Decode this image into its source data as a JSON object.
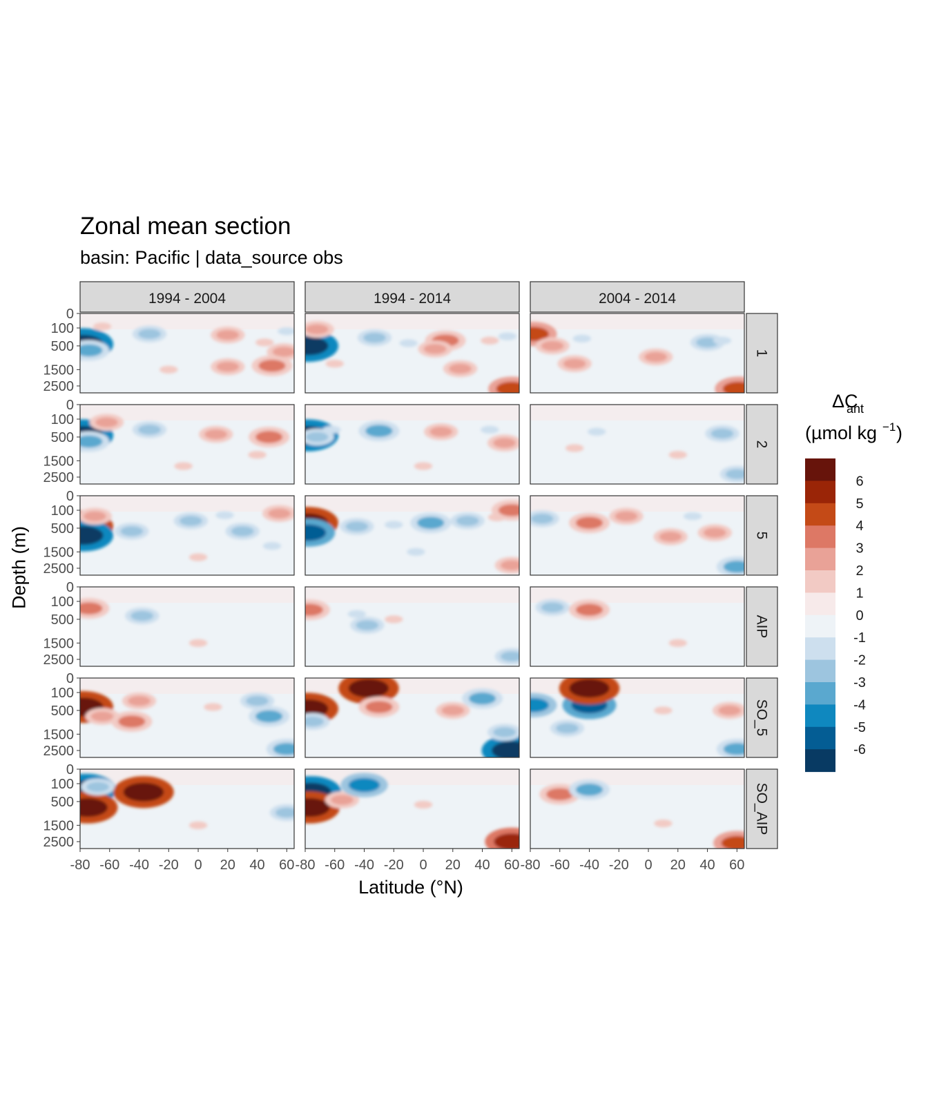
{
  "chart_data": {
    "type": "heatmap",
    "title": "Zonal mean section",
    "subtitle": "basin: Pacific | data_source obs",
    "xlabel": "Latitude (°N)",
    "ylabel": "Depth (m)",
    "xlim": [
      -80,
      65
    ],
    "x_ticks": [
      -80,
      -60,
      -40,
      -20,
      0,
      20,
      40,
      60
    ],
    "x_tick_labels": [
      "-80",
      "-60",
      "-40",
      "-20",
      "0",
      "20",
      "40",
      "60"
    ],
    "y_ticks": [
      0,
      100,
      500,
      1500,
      2500
    ],
    "y_tick_labels": [
      "0",
      "100",
      "500",
      "1500",
      "2500"
    ],
    "y_scale": "sqrt",
    "ylim": [
      3000,
      0
    ],
    "facet_columns": [
      "1994 - 2004",
      "1994 - 2014",
      "2004 - 2014"
    ],
    "facet_rows": [
      "1",
      "2",
      "5",
      "AIP",
      "SO_5",
      "SO_AIP"
    ],
    "legend": {
      "title_main": "ΔC",
      "title_sub": "ant",
      "title_units": "(µmol kg",
      "title_sup": "−1",
      "title_close": ")",
      "placement": "right",
      "labels": [
        "6",
        "5",
        "4",
        "3",
        "2",
        "1",
        "0",
        "-1",
        "-2",
        "-3",
        "-4",
        "-5",
        "-6"
      ],
      "colors": [
        "#67140b",
        "#9a2507",
        "#c44a17",
        "#dd7865",
        "#e9a297",
        "#f2cac4",
        "#f7eaea",
        "#eef3f7",
        "#cddfee",
        "#9dc5df",
        "#5aa8cf",
        "#0f88bf",
        "#045d94",
        "#083a63"
      ]
    },
    "panels": [
      {
        "row": "1",
        "col": "1994 - 2004",
        "features": [
          {
            "x": -78,
            "y": 450,
            "v": -6
          },
          {
            "x": -74,
            "y": 650,
            "v": -3
          },
          {
            "x": -65,
            "y": 80,
            "v": 1
          },
          {
            "x": -33,
            "y": 200,
            "v": -2
          },
          {
            "x": 20,
            "y": 220,
            "v": 2
          },
          {
            "x": 45,
            "y": 400,
            "v": 1
          },
          {
            "x": 58,
            "y": 700,
            "v": 2
          },
          {
            "x": 20,
            "y": 1350,
            "v": 2
          },
          {
            "x": 50,
            "y": 1300,
            "v": 3
          },
          {
            "x": -20,
            "y": 1500,
            "v": 1
          },
          {
            "x": 60,
            "y": 150,
            "v": -1
          }
        ]
      },
      {
        "row": "1",
        "col": "1994 - 2014",
        "features": [
          {
            "x": -78,
            "y": 500,
            "v": -6
          },
          {
            "x": -72,
            "y": 120,
            "v": 2
          },
          {
            "x": -60,
            "y": 1200,
            "v": 1
          },
          {
            "x": -33,
            "y": 280,
            "v": -2
          },
          {
            "x": -10,
            "y": 420,
            "v": -1
          },
          {
            "x": 15,
            "y": 350,
            "v": 3
          },
          {
            "x": 8,
            "y": 600,
            "v": 2
          },
          {
            "x": 25,
            "y": 1450,
            "v": 2
          },
          {
            "x": 45,
            "y": 350,
            "v": 1
          },
          {
            "x": 57,
            "y": 250,
            "v": -1
          },
          {
            "x": 60,
            "y": 2700,
            "v": 4
          }
        ]
      },
      {
        "row": "1",
        "col": "2004 - 2014",
        "features": [
          {
            "x": -78,
            "y": 200,
            "v": 4
          },
          {
            "x": -65,
            "y": 500,
            "v": 2
          },
          {
            "x": -50,
            "y": 1200,
            "v": 2
          },
          {
            "x": -45,
            "y": 300,
            "v": -1
          },
          {
            "x": 5,
            "y": 900,
            "v": 2
          },
          {
            "x": 40,
            "y": 400,
            "v": -2
          },
          {
            "x": 50,
            "y": 350,
            "v": -1
          },
          {
            "x": 61,
            "y": 2700,
            "v": 4
          }
        ]
      },
      {
        "row": "2",
        "col": "1994 - 2004",
        "features": [
          {
            "x": -78,
            "y": 450,
            "v": -6
          },
          {
            "x": -74,
            "y": 650,
            "v": -3
          },
          {
            "x": -62,
            "y": 150,
            "v": 2
          },
          {
            "x": -33,
            "y": 300,
            "v": -2
          },
          {
            "x": 12,
            "y": 420,
            "v": 2
          },
          {
            "x": 48,
            "y": 500,
            "v": 3
          },
          {
            "x": 40,
            "y": 1200,
            "v": 1
          },
          {
            "x": -10,
            "y": 1800,
            "v": 1
          }
        ]
      },
      {
        "row": "2",
        "col": "1994 - 2014",
        "features": [
          {
            "x": -78,
            "y": 450,
            "v": -6
          },
          {
            "x": -72,
            "y": 500,
            "v": -2
          },
          {
            "x": -62,
            "y": 300,
            "v": -1
          },
          {
            "x": -30,
            "y": 330,
            "v": -3
          },
          {
            "x": 12,
            "y": 350,
            "v": 2
          },
          {
            "x": 45,
            "y": 300,
            "v": -1
          },
          {
            "x": 55,
            "y": 700,
            "v": 2
          },
          {
            "x": 0,
            "y": 1800,
            "v": 1
          }
        ]
      },
      {
        "row": "2",
        "col": "2004 - 2014",
        "features": [
          {
            "x": -50,
            "y": 900,
            "v": 1
          },
          {
            "x": 20,
            "y": 1200,
            "v": 1
          },
          {
            "x": 50,
            "y": 400,
            "v": -2
          },
          {
            "x": -35,
            "y": 350,
            "v": -1
          },
          {
            "x": 60,
            "y": 2300,
            "v": -2
          }
        ]
      },
      {
        "row": "5",
        "col": "1994 - 2004",
        "features": [
          {
            "x": -78,
            "y": 450,
            "v": 6
          },
          {
            "x": -78,
            "y": 750,
            "v": -6
          },
          {
            "x": -70,
            "y": 200,
            "v": 2
          },
          {
            "x": -45,
            "y": 600,
            "v": -2
          },
          {
            "x": -5,
            "y": 300,
            "v": -2
          },
          {
            "x": 18,
            "y": 180,
            "v": -1
          },
          {
            "x": 30,
            "y": 600,
            "v": -2
          },
          {
            "x": 55,
            "y": 150,
            "v": 2
          },
          {
            "x": 50,
            "y": 1200,
            "v": -1
          },
          {
            "x": 0,
            "y": 1800,
            "v": 1
          }
        ]
      },
      {
        "row": "5",
        "col": "1994 - 2014",
        "features": [
          {
            "x": -78,
            "y": 350,
            "v": 6
          },
          {
            "x": -78,
            "y": 650,
            "v": -5
          },
          {
            "x": -45,
            "y": 450,
            "v": -2
          },
          {
            "x": -20,
            "y": 400,
            "v": -1
          },
          {
            "x": 5,
            "y": 350,
            "v": -3
          },
          {
            "x": 30,
            "y": 300,
            "v": -2
          },
          {
            "x": 50,
            "y": 220,
            "v": 1
          },
          {
            "x": 60,
            "y": 100,
            "v": 3
          },
          {
            "x": -5,
            "y": 1500,
            "v": -1
          },
          {
            "x": 60,
            "y": 2300,
            "v": 2
          }
        ]
      },
      {
        "row": "5",
        "col": "2004 - 2014",
        "features": [
          {
            "x": -72,
            "y": 250,
            "v": -2
          },
          {
            "x": -40,
            "y": 350,
            "v": 3
          },
          {
            "x": -15,
            "y": 200,
            "v": 2
          },
          {
            "x": 30,
            "y": 200,
            "v": -1
          },
          {
            "x": 15,
            "y": 800,
            "v": 2
          },
          {
            "x": 45,
            "y": 650,
            "v": 2
          },
          {
            "x": 60,
            "y": 2400,
            "v": -3
          }
        ]
      },
      {
        "row": "AIP",
        "col": "1994 - 2004",
        "features": [
          {
            "x": -74,
            "y": 220,
            "v": 3
          },
          {
            "x": -38,
            "y": 400,
            "v": -2
          },
          {
            "x": 0,
            "y": 1500,
            "v": 1
          }
        ]
      },
      {
        "row": "AIP",
        "col": "1994 - 2014",
        "features": [
          {
            "x": -77,
            "y": 250,
            "v": 3
          },
          {
            "x": -45,
            "y": 350,
            "v": -1
          },
          {
            "x": -38,
            "y": 700,
            "v": -2
          },
          {
            "x": -20,
            "y": 500,
            "v": 1
          },
          {
            "x": 60,
            "y": 2300,
            "v": -2
          }
        ]
      },
      {
        "row": "AIP",
        "col": "2004 - 2014",
        "features": [
          {
            "x": -65,
            "y": 200,
            "v": -2
          },
          {
            "x": -40,
            "y": 250,
            "v": 3
          },
          {
            "x": 20,
            "y": 1500,
            "v": 1
          }
        ]
      },
      {
        "row": "SO_5",
        "col": "1994 - 2004",
        "features": [
          {
            "x": -78,
            "y": 400,
            "v": 6
          },
          {
            "x": -65,
            "y": 700,
            "v": 2
          },
          {
            "x": -45,
            "y": 900,
            "v": 3
          },
          {
            "x": -40,
            "y": 250,
            "v": 2
          },
          {
            "x": 40,
            "y": 250,
            "v": -2
          },
          {
            "x": 48,
            "y": 700,
            "v": -3
          },
          {
            "x": 60,
            "y": 2400,
            "v": -3
          },
          {
            "x": 10,
            "y": 400,
            "v": 1
          }
        ]
      },
      {
        "row": "SO_5",
        "col": "1994 - 2014",
        "features": [
          {
            "x": -78,
            "y": 450,
            "v": 6
          },
          {
            "x": -75,
            "y": 900,
            "v": -2
          },
          {
            "x": -37,
            "y": 50,
            "v": 6
          },
          {
            "x": -30,
            "y": 400,
            "v": 3
          },
          {
            "x": 20,
            "y": 500,
            "v": 2
          },
          {
            "x": 40,
            "y": 200,
            "v": -3
          },
          {
            "x": 60,
            "y": 2500,
            "v": -6
          },
          {
            "x": 55,
            "y": 1400,
            "v": -2
          }
        ]
      },
      {
        "row": "SO_5",
        "col": "2004 - 2014",
        "features": [
          {
            "x": -78,
            "y": 350,
            "v": -4
          },
          {
            "x": -40,
            "y": 350,
            "v": -5
          },
          {
            "x": -40,
            "y": 50,
            "v": 6
          },
          {
            "x": -55,
            "y": 1200,
            "v": -2
          },
          {
            "x": 10,
            "y": 500,
            "v": 1
          },
          {
            "x": 55,
            "y": 500,
            "v": 2
          },
          {
            "x": 60,
            "y": 2400,
            "v": -3
          }
        ]
      },
      {
        "row": "SO_AIP",
        "col": "1994 - 2004",
        "features": [
          {
            "x": -76,
            "y": 200,
            "v": -6
          },
          {
            "x": -75,
            "y": 700,
            "v": 6
          },
          {
            "x": -68,
            "y": 150,
            "v": -2
          },
          {
            "x": -37,
            "y": 250,
            "v": 6
          },
          {
            "x": 0,
            "y": 1500,
            "v": 1
          },
          {
            "x": 60,
            "y": 900,
            "v": -2
          }
        ]
      },
      {
        "row": "SO_AIP",
        "col": "1994 - 2014",
        "features": [
          {
            "x": -76,
            "y": 250,
            "v": -6
          },
          {
            "x": -77,
            "y": 700,
            "v": 6
          },
          {
            "x": -55,
            "y": 450,
            "v": 2
          },
          {
            "x": -40,
            "y": 120,
            "v": -4
          },
          {
            "x": 0,
            "y": 600,
            "v": 1
          },
          {
            "x": 60,
            "y": 2500,
            "v": 5
          }
        ]
      },
      {
        "row": "SO_AIP",
        "col": "2004 - 2014",
        "features": [
          {
            "x": -60,
            "y": 300,
            "v": 3
          },
          {
            "x": -40,
            "y": 200,
            "v": -3
          },
          {
            "x": 10,
            "y": 1400,
            "v": 1
          },
          {
            "x": 60,
            "y": 2600,
            "v": 4
          }
        ]
      }
    ]
  }
}
